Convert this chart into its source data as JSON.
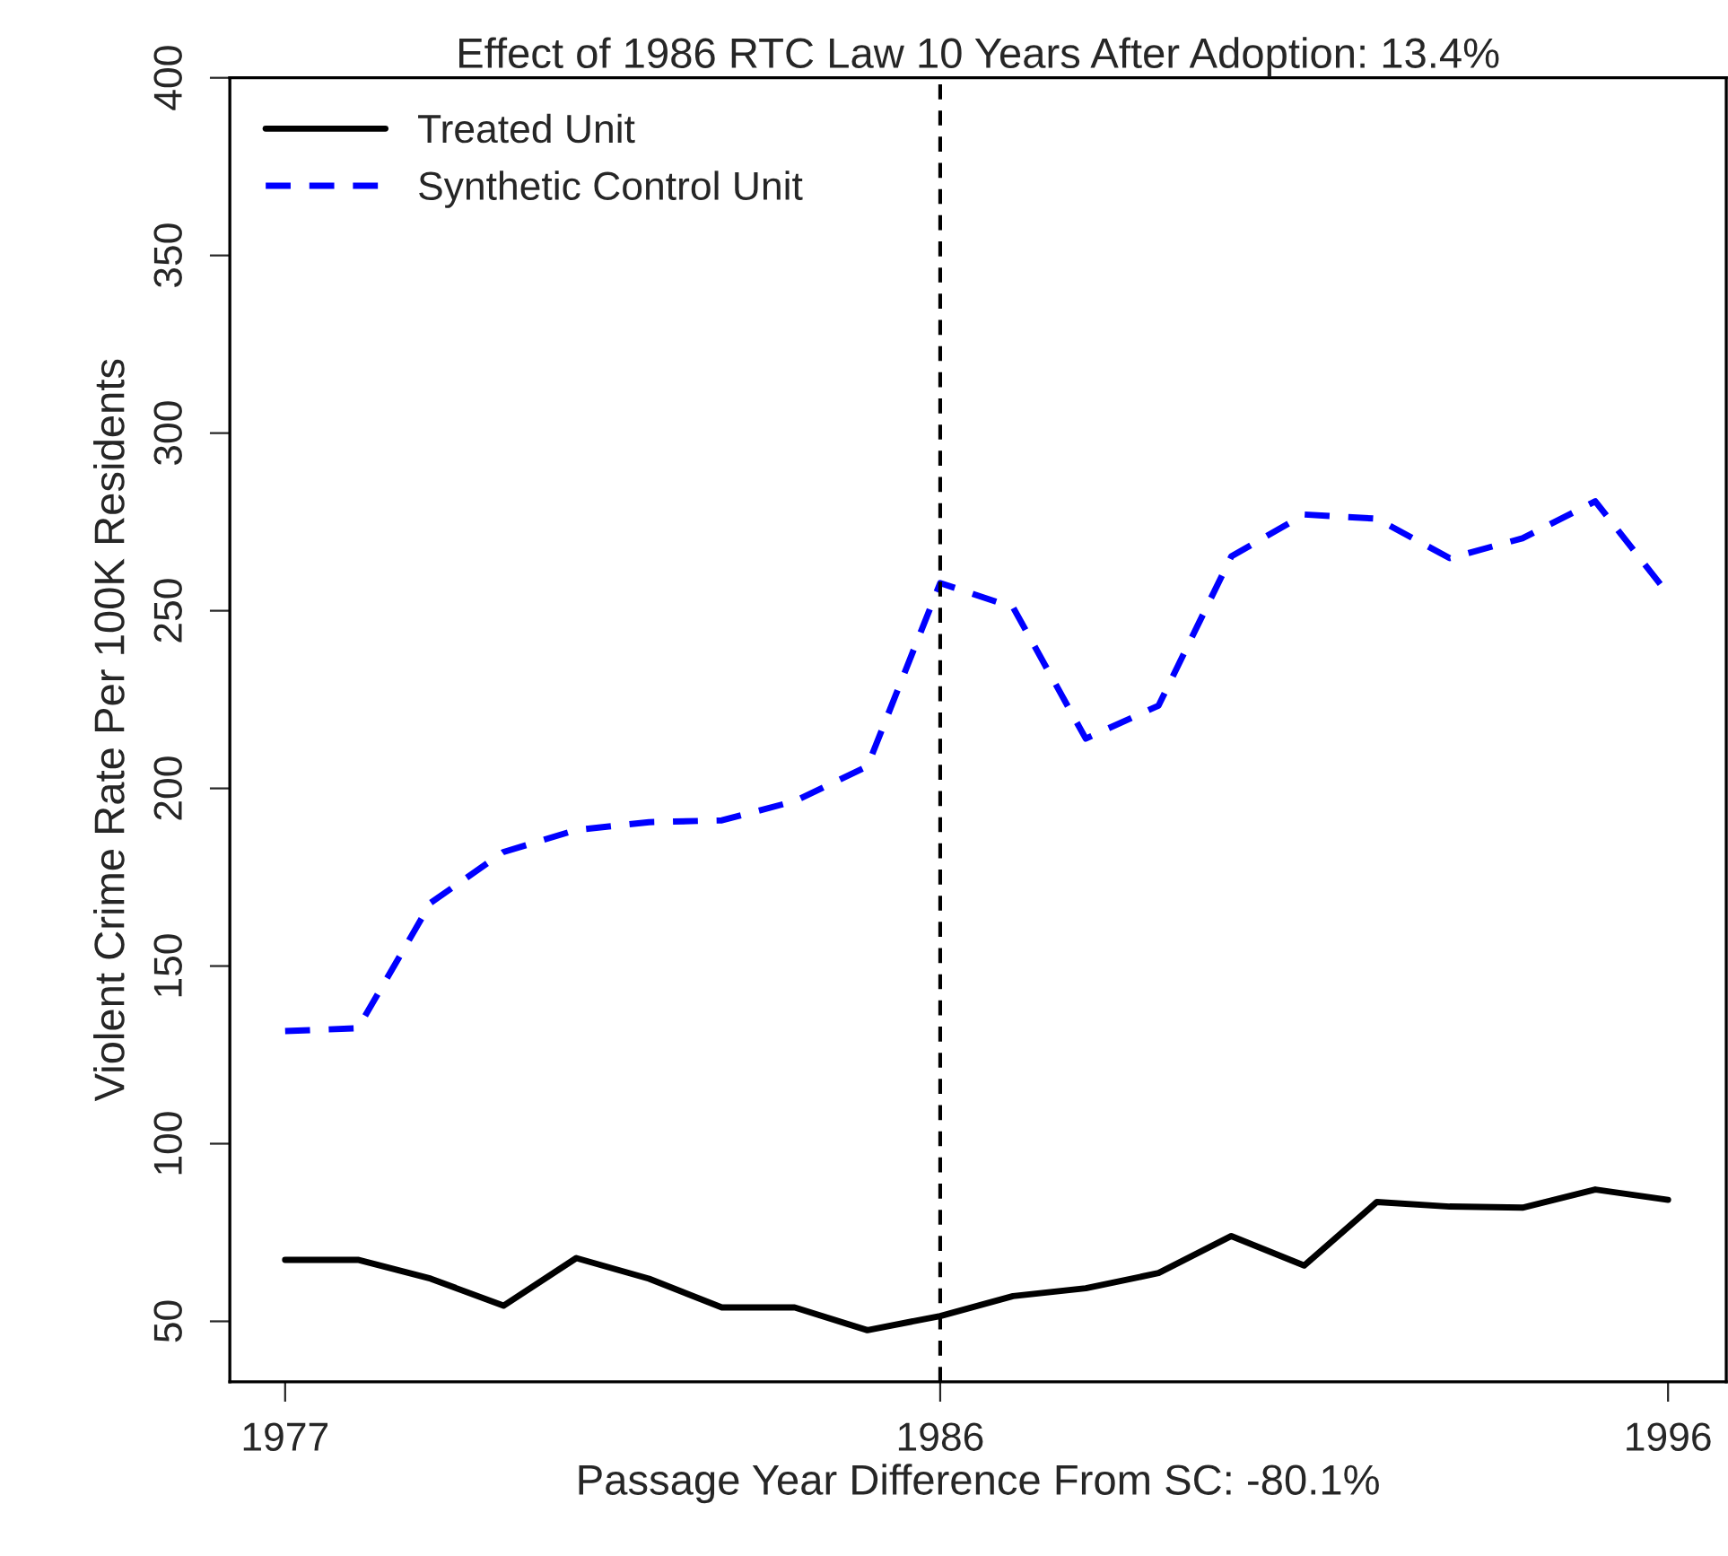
{
  "chart_data": {
    "type": "line",
    "title": "Effect of 1986 RTC Law 10 Years After Adoption: 13.4%",
    "xlabel": "Passage Year Difference From SC: -80.1%",
    "ylabel": "Violent Crime Rate Per 100K Residents",
    "x": [
      1977,
      1978,
      1979,
      1980,
      1981,
      1982,
      1983,
      1984,
      1985,
      1986,
      1987,
      1988,
      1989,
      1990,
      1991,
      1992,
      1993,
      1994,
      1995,
      1996
    ],
    "series": [
      {
        "name": "Treated Unit",
        "color": "#000000",
        "line_style": "solid",
        "values": [
          67.3,
          67.3,
          62,
          54.4,
          67.8,
          62,
          53.9,
          53.9,
          47.5,
          51.5,
          57.1,
          59.3,
          63.6,
          74,
          65.7,
          83.6,
          82.3,
          82,
          87.1,
          84.2
        ]
      },
      {
        "name": "Synthetic Control Unit",
        "color": "#0000ff",
        "line_style": "dashed",
        "values": [
          131.7,
          132.5,
          167.8,
          182.1,
          188.3,
          190.5,
          191,
          196.4,
          206.2,
          257.8,
          251,
          214,
          223.3,
          265.3,
          277.1,
          275.9,
          264.8,
          270.4,
          280.8,
          254.7
        ]
      }
    ],
    "xlim": [
      1976.24,
      1996.8
    ],
    "xticks": [
      1977,
      1986,
      1996
    ],
    "ylim": [
      33,
      400
    ],
    "yticks": [
      50,
      100,
      150,
      200,
      250,
      300,
      350,
      400
    ],
    "ref_lines": [
      {
        "axis": "x",
        "value": 1986,
        "color": "#000000",
        "line_style": "dashed"
      }
    ],
    "grid": false,
    "legend": "top left",
    "marker": "none"
  }
}
